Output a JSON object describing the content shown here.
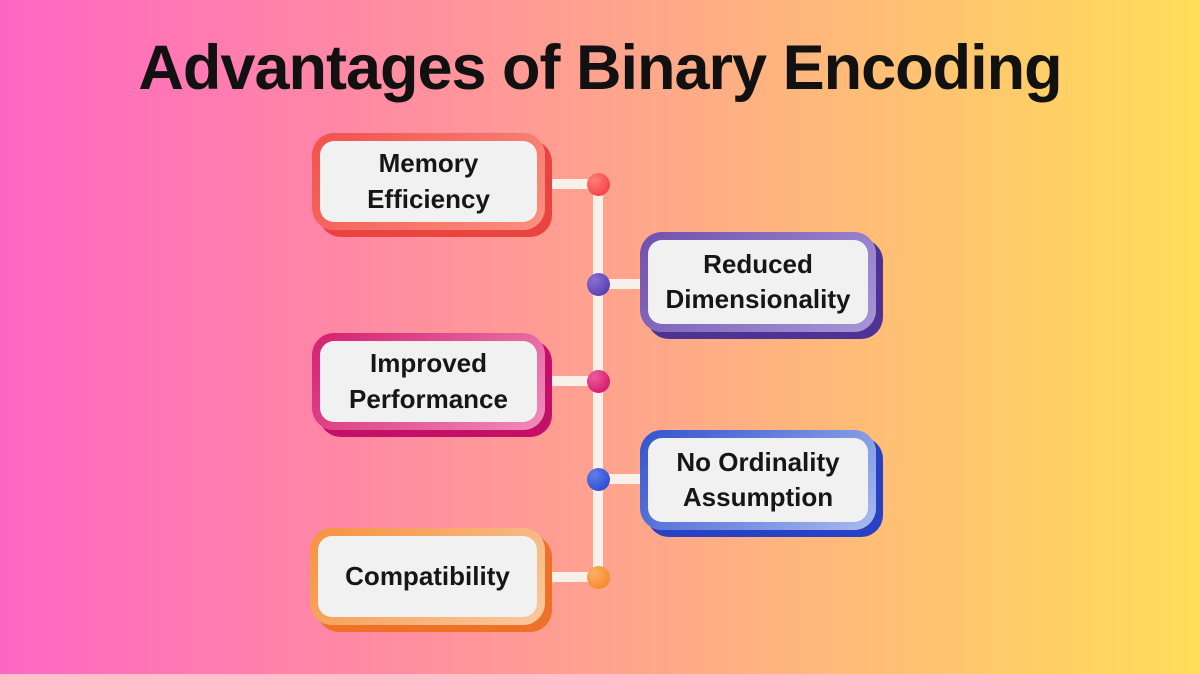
{
  "title": "Advantages of Binary Encoding",
  "theme": {
    "background_gradient_left": "#ff66c4",
    "background_gradient_right": "#ffde59",
    "connector_color": "#f8f1ea",
    "box_fill": "#f2f1f2",
    "title_color": "#111111",
    "label_color": "#161616"
  },
  "items": [
    {
      "label": "Memory Efficiency",
      "side": "left",
      "border_dark": "#f1514d",
      "border_light": "#fa9181",
      "shadow": "#e94440",
      "dot": "#f4484b",
      "dot_light": "#fb8079"
    },
    {
      "label": "Reduced Dimensionality",
      "side": "right",
      "border_dark": "#6f51ad",
      "border_light": "#a995d8",
      "shadow": "#4d3394",
      "dot": "#5c43b2",
      "dot_light": "#8a6fd6"
    },
    {
      "label": "Improved Performance",
      "side": "left",
      "border_dark": "#d4206f",
      "border_light": "#f18cba",
      "shadow": "#c30f67",
      "dot": "#d51f70",
      "dot_light": "#ee5c9d"
    },
    {
      "label": "No Ordinality Assumption",
      "side": "right",
      "border_dark": "#3253ce",
      "border_light": "#a9bbf0",
      "shadow": "#2742c5",
      "dot": "#2f52d4",
      "dot_light": "#5f7ce8"
    },
    {
      "label": "Compatibility",
      "side": "left",
      "border_dark": "#f5923f",
      "border_light": "#fbc9a0",
      "shadow": "#ee7127",
      "dot": "#f78c2e",
      "dot_light": "#fbaf63"
    }
  ]
}
